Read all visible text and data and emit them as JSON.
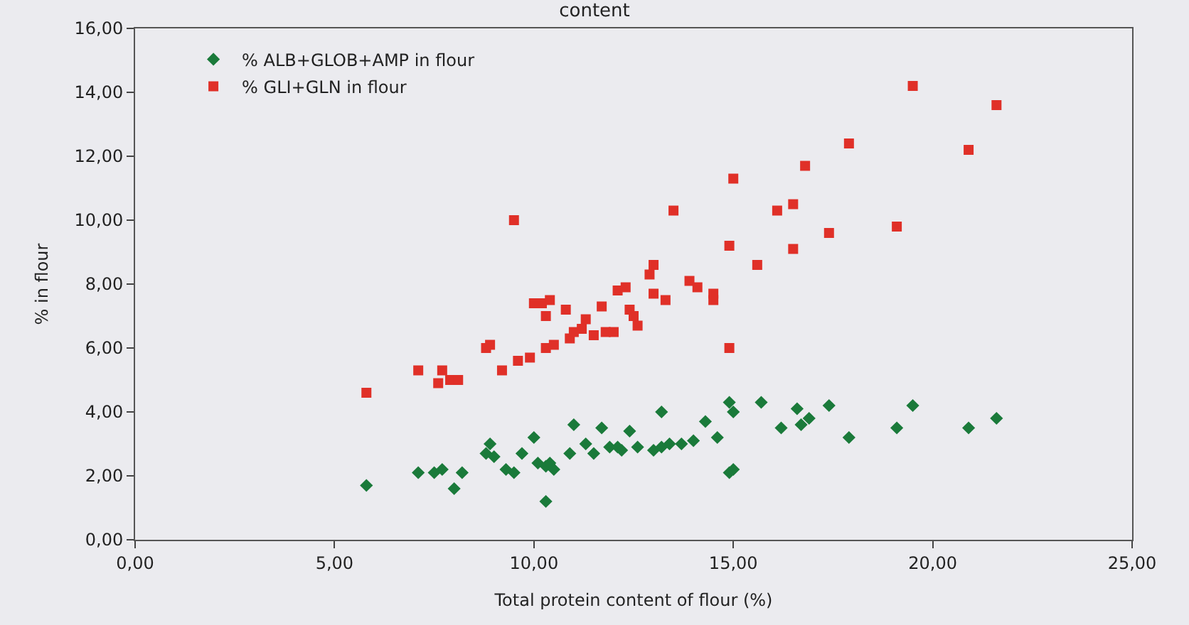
{
  "chart_data": {
    "type": "scatter",
    "title": "content",
    "xlabel": "Total protein content of flour (%)",
    "ylabel": "% in flour",
    "xlim": [
      0,
      25
    ],
    "xticks": [
      {
        "value": 0,
        "label": "0,00"
      },
      {
        "value": 5,
        "label": "5,00"
      },
      {
        "value": 10,
        "label": "10,00"
      },
      {
        "value": 15,
        "label": "15,00"
      },
      {
        "value": 20,
        "label": "20,00"
      },
      {
        "value": 25,
        "label": "25,00"
      }
    ],
    "ylim": [
      0,
      16
    ],
    "yticks": [
      {
        "value": 0,
        "label": "0,00"
      },
      {
        "value": 2,
        "label": "2,00"
      },
      {
        "value": 4,
        "label": "4,00"
      },
      {
        "value": 6,
        "label": "6,00"
      },
      {
        "value": 8,
        "label": "8,00"
      },
      {
        "value": 10,
        "label": "10,00"
      },
      {
        "value": 12,
        "label": "12,00"
      },
      {
        "value": 14,
        "label": "14,00"
      },
      {
        "value": 16,
        "label": "16,00"
      }
    ],
    "grid": false,
    "legend": "top left",
    "series": [
      {
        "name": "% ALB+GLOB+AMP in flour",
        "color": "#1a7a3a",
        "marker": "diamond",
        "x": [
          5.8,
          7.1,
          7.5,
          7.7,
          8.0,
          8.2,
          8.8,
          8.9,
          9.0,
          9.3,
          9.5,
          9.7,
          10.0,
          10.1,
          10.3,
          10.3,
          10.4,
          10.5,
          10.9,
          11.0,
          11.3,
          11.5,
          11.7,
          11.9,
          12.1,
          12.2,
          12.4,
          12.6,
          13.0,
          13.2,
          13.2,
          13.4,
          13.7,
          14.0,
          14.3,
          14.6,
          14.9,
          15.0,
          14.9,
          15.0,
          15.7,
          16.2,
          16.6,
          16.7,
          16.9,
          17.4,
          17.9,
          19.1,
          19.5,
          20.9,
          21.6
        ],
        "values": [
          1.7,
          2.1,
          2.1,
          2.2,
          1.6,
          2.1,
          2.7,
          3.0,
          2.6,
          2.2,
          2.1,
          2.7,
          3.2,
          2.4,
          2.3,
          1.2,
          2.4,
          2.2,
          2.7,
          3.6,
          3.0,
          2.7,
          3.5,
          2.9,
          2.9,
          2.8,
          3.4,
          2.9,
          2.8,
          2.9,
          4.0,
          3.0,
          3.0,
          3.1,
          3.7,
          3.2,
          4.3,
          2.2,
          2.1,
          4.0,
          4.3,
          3.5,
          4.1,
          3.6,
          3.8,
          4.2,
          3.2,
          3.5,
          4.2,
          3.5,
          3.8
        ]
      },
      {
        "name": "% GLI+GLN in flour",
        "color": "#e03028",
        "marker": "square",
        "x": [
          5.8,
          7.1,
          7.6,
          7.7,
          7.9,
          8.1,
          8.8,
          8.9,
          9.2,
          9.5,
          9.6,
          9.9,
          10.0,
          10.2,
          10.3,
          10.3,
          10.4,
          10.5,
          10.8,
          10.9,
          11.0,
          11.2,
          11.3,
          11.5,
          11.7,
          11.8,
          12.0,
          12.1,
          12.3,
          12.4,
          12.5,
          12.6,
          12.9,
          13.0,
          13.0,
          13.3,
          13.5,
          13.9,
          14.1,
          14.5,
          14.5,
          14.9,
          14.9,
          15.0,
          15.6,
          16.1,
          16.5,
          16.5,
          16.8,
          17.4,
          17.9,
          19.1,
          19.5,
          20.9,
          21.6
        ],
        "values": [
          4.6,
          5.3,
          4.9,
          5.3,
          5.0,
          5.0,
          6.0,
          6.1,
          5.3,
          10.0,
          5.6,
          5.7,
          7.4,
          7.4,
          7.0,
          6.0,
          7.5,
          6.1,
          7.2,
          6.3,
          6.5,
          6.6,
          6.9,
          6.4,
          7.3,
          6.5,
          6.5,
          7.8,
          7.9,
          7.2,
          7.0,
          6.7,
          8.3,
          8.6,
          7.7,
          7.5,
          10.3,
          8.1,
          7.9,
          7.7,
          7.5,
          9.2,
          6.0,
          11.3,
          8.6,
          10.3,
          9.1,
          10.5,
          11.7,
          9.6,
          12.4,
          9.8,
          14.2,
          12.2,
          13.6
        ]
      }
    ]
  }
}
